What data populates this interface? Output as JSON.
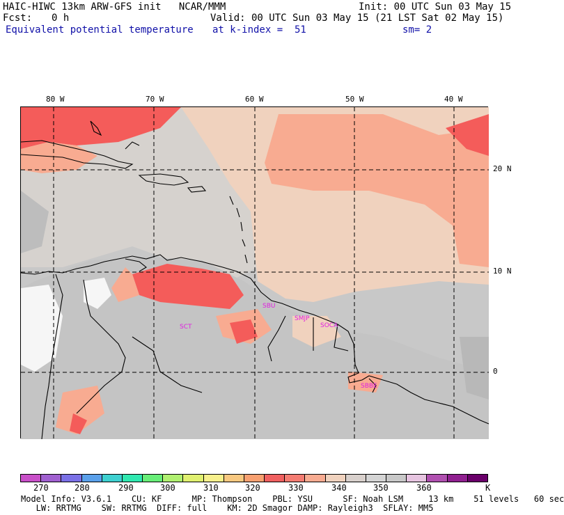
{
  "header": {
    "line1_left": "HAIC-HIWC 13km ARW-GFS init   NCAR/MMM",
    "line1_right": "Init: 00 UTC Sun 03 May 15",
    "fcst_label": "Fcst:",
    "fcst_value": "0 h",
    "valid": "Valid: 00 UTC Sun 03 May 15 (21 LST Sat 02 May 15)",
    "field": "Equivalent potential temperature",
    "kindex": "at k-index =  51",
    "sm": "sm= 2"
  },
  "map": {
    "lon_labels": [
      "80 W",
      "70 W",
      "60 W",
      "50 W",
      "40 W"
    ],
    "lat_labels": [
      "20 N",
      "10 N",
      "0"
    ],
    "stations": [
      "SBU",
      "SMJP",
      "SOCA",
      "SBBE",
      "SCT"
    ],
    "colors": {
      "background": "#c8c8c8",
      "light_grey": "#d8d8d8",
      "tan": "#f0d2be",
      "salmon": "#f8ab91",
      "red": "#f45c5a",
      "white": "#f6f6f6",
      "station": "#e020e0"
    }
  },
  "colorbar": {
    "unit": "K",
    "labels": [
      "270",
      "280",
      "290",
      "300",
      "310",
      "320",
      "330",
      "340",
      "350",
      "360"
    ],
    "colors": [
      "#c84fc8",
      "#a060d0",
      "#7a70e6",
      "#5aa0ea",
      "#3ed0d0",
      "#30e8b0",
      "#68ee78",
      "#b0f070",
      "#e0f070",
      "#f7f08c",
      "#f8c880",
      "#f8a070",
      "#f06060",
      "#f47c72",
      "#f8ab91",
      "#f0d2be",
      "#d8d0cc",
      "#d4d4d4",
      "#c8c8c8",
      "#e6c4e0",
      "#b050b0",
      "#902090",
      "#6a006a"
    ]
  },
  "footer": {
    "line1": "Model Info: V3.6.1    CU: KF      MP: Thompson    PBL: YSU      SF: Noah LSM     13 km    51 levels   60 sec",
    "line2": "   LW: RRTMG    SW: RRTMG  DIFF: full    KM: 2D Smagor DAMP: Rayleigh3  SFLAY: MM5"
  }
}
